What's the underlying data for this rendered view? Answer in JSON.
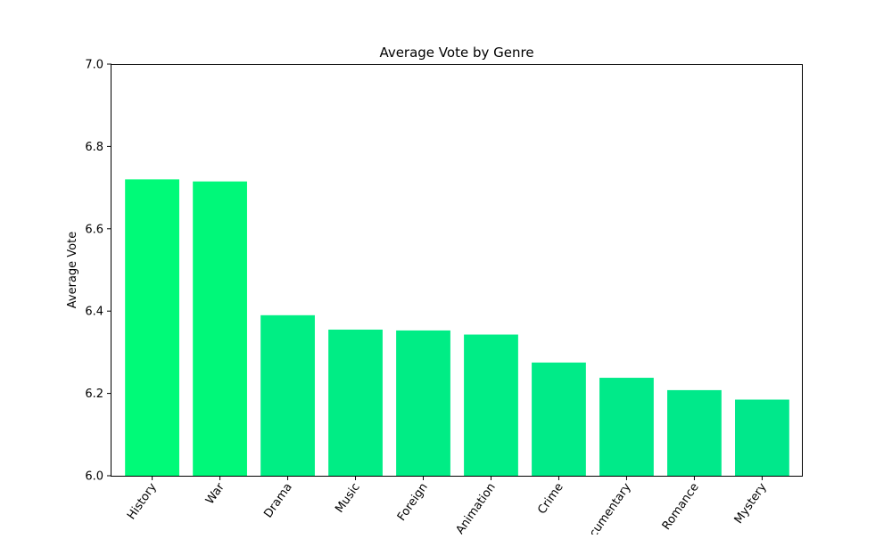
{
  "chart_data": {
    "type": "bar",
    "title": "Average Vote by Genre",
    "xlabel": "",
    "ylabel": "Average Vote",
    "categories": [
      "History",
      "War",
      "Drama",
      "Music",
      "Foreign",
      "Animation",
      "Crime",
      "Documentary",
      "Romance",
      "Mystery"
    ],
    "values": [
      6.72,
      6.715,
      6.39,
      6.355,
      6.353,
      6.343,
      6.275,
      6.238,
      6.208,
      6.185
    ],
    "bar_colors": [
      "#00fa78",
      "#00f879",
      "#00ee84",
      "#00ed85",
      "#00ed85",
      "#00ed86",
      "#00eb88",
      "#00ea89",
      "#00e98a",
      "#00e88b"
    ],
    "ylim": [
      6.0,
      7.0
    ],
    "yticks": [
      "6.0",
      "6.2",
      "6.4",
      "6.6",
      "6.8",
      "7.0"
    ],
    "ytick_values": [
      6.0,
      6.2,
      6.4,
      6.6,
      6.8,
      7.0
    ],
    "grid": false,
    "legend": "none"
  }
}
